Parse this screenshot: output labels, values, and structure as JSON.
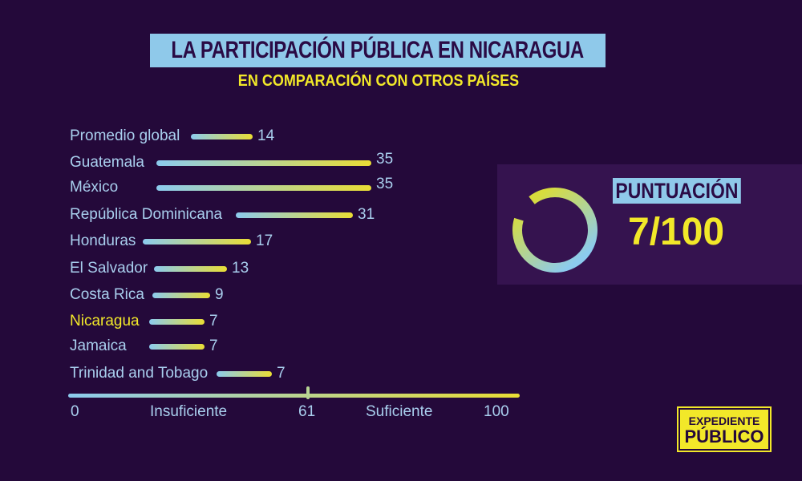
{
  "title": "LA PARTICIPACIÓN PÚBLICA EN NICARAGUA",
  "subtitle": "EN COMPARACIÓN CON OTROS PAÍSES",
  "chart_data": {
    "type": "bar",
    "orientation": "horizontal",
    "categories": [
      "Promedio global",
      "Guatemala",
      "México",
      "República Dominicana",
      "Honduras",
      "El Salvador",
      "Costa Rica",
      "Nicaragua",
      "Jamaica",
      "Trinidad and Tobago"
    ],
    "values": [
      14,
      35,
      35,
      31,
      17,
      13,
      9,
      7,
      7,
      7
    ],
    "highlight": "Nicaragua",
    "scale": {
      "min_label": "0",
      "mid_label": "61",
      "max_label": "100",
      "low_label": "Insuficiente",
      "high_label": "Suficiente",
      "min": 0,
      "threshold": 61,
      "max": 100
    },
    "colors": {
      "gradient_start": "#8ccbee",
      "gradient_end": "#e9dd35",
      "highlight": "#f2e829"
    }
  },
  "score_panel": {
    "label": "PUNTUACIÓN",
    "score_text": "7/100",
    "score": 7,
    "max": 100
  },
  "logo": {
    "line1": "EXPEDIENTE",
    "line2": "PÚBLICO"
  }
}
